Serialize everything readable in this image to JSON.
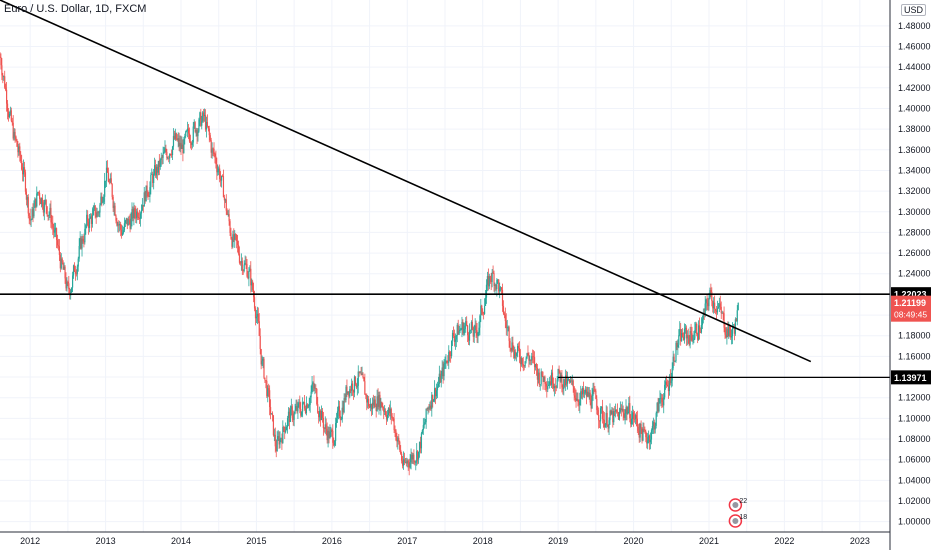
{
  "chart_data": {
    "type": "line",
    "title": "Euro / U.S. Dollar, 1D, FXCM",
    "currency": "USD",
    "x_axis": {
      "ticks": [
        "2012",
        "2013",
        "2014",
        "2015",
        "2016",
        "2017",
        "2018",
        "2019",
        "2020",
        "2021",
        "2022",
        "2023"
      ],
      "range": [
        2011.6,
        2023.4
      ]
    },
    "y_axis": {
      "ticks": [
        "1.48000",
        "1.46000",
        "1.44000",
        "1.42000",
        "1.40000",
        "1.38000",
        "1.36000",
        "1.34000",
        "1.32000",
        "1.30000",
        "1.28000",
        "1.26000",
        "1.24000",
        "1.22000",
        "1.20000",
        "1.18000",
        "1.16000",
        "1.14000",
        "1.12000",
        "1.10000",
        "1.08000",
        "1.06000",
        "1.04000",
        "1.02000",
        "1.00000"
      ],
      "range": [
        0.99,
        1.505
      ]
    },
    "grid": true,
    "series": [
      {
        "kind": "candlestick",
        "x": [
          2011.6,
          2011.75,
          2011.9,
          2012.0,
          2012.1,
          2012.25,
          2012.4,
          2012.5,
          2012.6,
          2012.75,
          2012.9,
          2013.0,
          2013.1,
          2013.2,
          2013.4,
          2013.6,
          2013.75,
          2013.9,
          2014.0,
          2014.15,
          2014.3,
          2014.4,
          2014.5,
          2014.65,
          2014.75,
          2014.9,
          2015.0,
          2015.05,
          2015.15,
          2015.25,
          2015.4,
          2015.6,
          2015.75,
          2015.9,
          2016.0,
          2016.2,
          2016.35,
          2016.5,
          2016.6,
          2016.8,
          2016.95,
          2017.0,
          2017.15,
          2017.3,
          2017.45,
          2017.6,
          2017.75,
          2017.9,
          2018.0,
          2018.1,
          2018.2,
          2018.3,
          2018.45,
          2018.6,
          2018.75,
          2018.9,
          2019.0,
          2019.15,
          2019.3,
          2019.45,
          2019.6,
          2019.75,
          2019.9,
          2020.0,
          2020.15,
          2020.25,
          2020.35,
          2020.45,
          2020.55,
          2020.65,
          2020.75,
          2020.9,
          2021.0,
          2021.1,
          2021.2,
          2021.3,
          2021.4
        ],
        "close": [
          1.45,
          1.38,
          1.34,
          1.29,
          1.32,
          1.3,
          1.25,
          1.22,
          1.25,
          1.29,
          1.3,
          1.34,
          1.31,
          1.28,
          1.3,
          1.33,
          1.35,
          1.37,
          1.36,
          1.38,
          1.39,
          1.36,
          1.34,
          1.28,
          1.26,
          1.24,
          1.2,
          1.16,
          1.12,
          1.07,
          1.1,
          1.11,
          1.13,
          1.09,
          1.08,
          1.13,
          1.14,
          1.11,
          1.12,
          1.1,
          1.05,
          1.06,
          1.07,
          1.12,
          1.14,
          1.18,
          1.19,
          1.18,
          1.21,
          1.24,
          1.23,
          1.19,
          1.16,
          1.16,
          1.14,
          1.14,
          1.14,
          1.13,
          1.12,
          1.12,
          1.1,
          1.1,
          1.11,
          1.1,
          1.08,
          1.09,
          1.12,
          1.13,
          1.17,
          1.18,
          1.18,
          1.19,
          1.22,
          1.21,
          1.19,
          1.18,
          1.21
        ]
      },
      {
        "kind": "trendline",
        "x": [
          2011.6,
          2022.35
        ],
        "y": [
          1.505,
          1.155
        ]
      },
      {
        "kind": "horizontal_line",
        "y": 1.22023,
        "label": "1.22023"
      },
      {
        "kind": "horizontal_ray",
        "x_start": 2019.0,
        "y": 1.13971,
        "label": "1.13971"
      }
    ],
    "price_label": {
      "value": "1.21199",
      "countdown": "08:49:45"
    },
    "event_badges": [
      {
        "x": 2021.35,
        "label": "22"
      },
      {
        "x": 2021.35,
        "label": "18"
      }
    ],
    "colors": {
      "up": "#26a69a",
      "down": "#ef5350",
      "grid": "#f0f3fa",
      "line": "#000000"
    }
  }
}
